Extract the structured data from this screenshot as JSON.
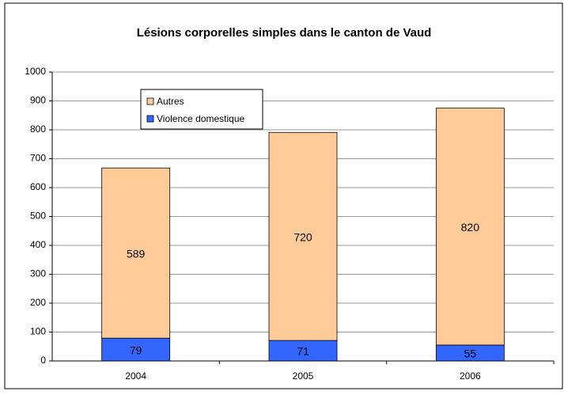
{
  "chart_data": {
    "type": "stacked_bar",
    "title": "Lésions corporelles simples dans le canton de Vaud",
    "categories": [
      "2004",
      "2005",
      "2006"
    ],
    "series": [
      {
        "name": "Violence domestique",
        "color": "#3366ff",
        "values": [
          79,
          71,
          55
        ]
      },
      {
        "name": "Autres",
        "color": "#ffcc99",
        "values": [
          589,
          720,
          820
        ]
      }
    ],
    "ylim": [
      0,
      1000
    ],
    "yticks": [
      0,
      100,
      200,
      300,
      400,
      500,
      600,
      700,
      800,
      900,
      1000
    ],
    "grid": true
  }
}
